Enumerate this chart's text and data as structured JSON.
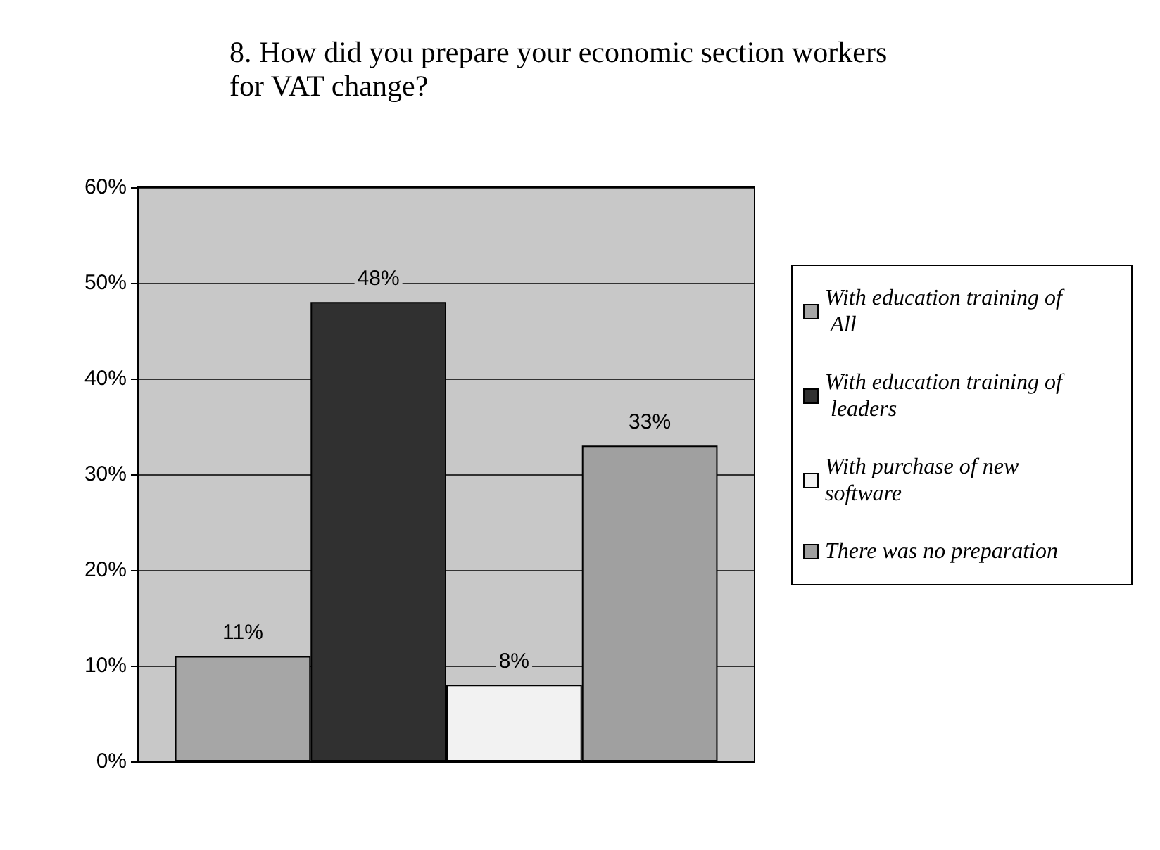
{
  "chart_data": {
    "type": "bar",
    "title": "8. How did you prepare your economic section workers for VAT change?",
    "categories": [
      null
    ],
    "series": [
      {
        "name": "With education training of All",
        "color": "#a6a6a6",
        "values": [
          11
        ],
        "value_labels": [
          "11%"
        ]
      },
      {
        "name": "With education training of leaders",
        "color": "#303030",
        "values": [
          48
        ],
        "value_labels": [
          "48%"
        ]
      },
      {
        "name": "With purchase of new software",
        "color": "#f2f2f2",
        "values": [
          8
        ],
        "value_labels": [
          "8%"
        ]
      },
      {
        "name": "There was no preparation",
        "color": "#a0a0a0",
        "values": [
          33
        ],
        "value_labels": [
          "33%"
        ]
      }
    ],
    "ylim": [
      0,
      60
    ],
    "yticks": [
      {
        "value": 0,
        "label": "0%"
      },
      {
        "value": 10,
        "label": "10%"
      },
      {
        "value": 20,
        "label": "20%"
      },
      {
        "value": 30,
        "label": "30%"
      },
      {
        "value": 40,
        "label": "40%"
      },
      {
        "value": 50,
        "label": "50%"
      },
      {
        "value": 60,
        "label": "60%"
      }
    ],
    "grid": "y",
    "legend": "right"
  }
}
